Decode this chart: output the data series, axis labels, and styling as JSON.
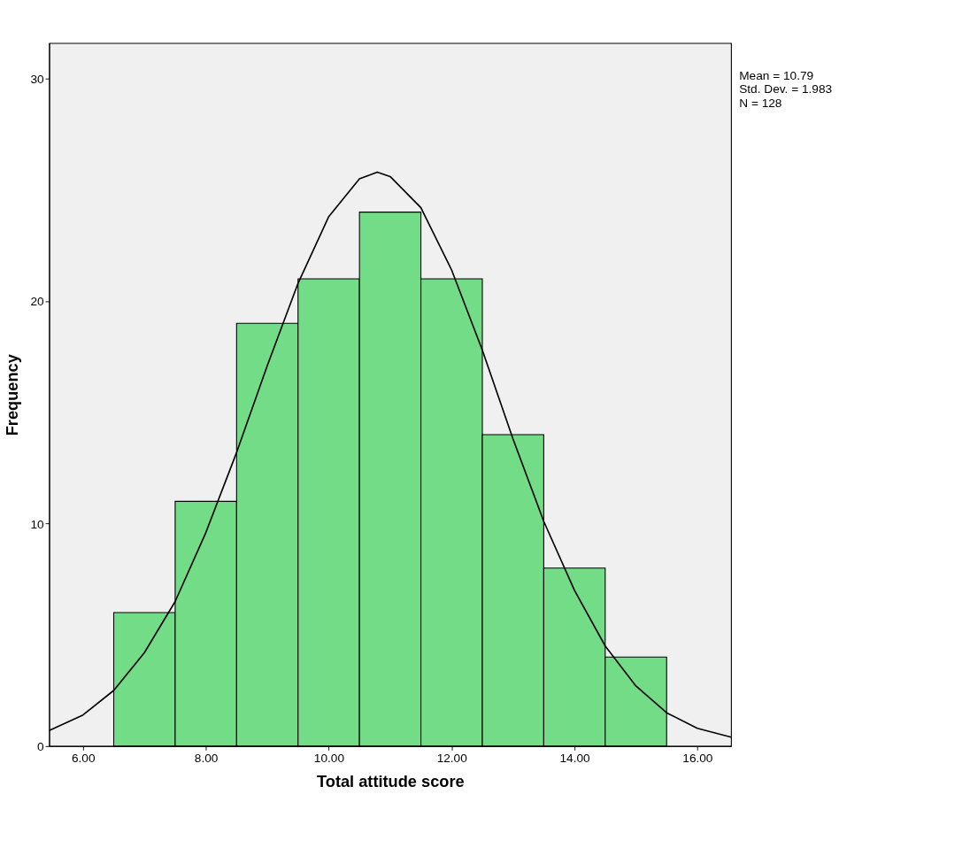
{
  "chart_data": {
    "type": "histogram",
    "xlabel": "Total attitude score",
    "ylabel": "Frequency",
    "bins": [
      6.5,
      7.5,
      8.5,
      9.5,
      10.5,
      11.5,
      12.5,
      13.5,
      14.5,
      15.5
    ],
    "values": [
      6,
      11,
      19,
      21,
      24,
      21,
      14,
      8,
      4
    ],
    "color": "#72dc86",
    "series": [
      {
        "type": "line",
        "color": "#000000",
        "x": [
          5.45,
          6.0,
          6.5,
          7.0,
          7.5,
          8.0,
          8.5,
          9.0,
          9.5,
          10.0,
          10.5,
          10.79,
          11.0,
          11.5,
          12.0,
          12.5,
          13.0,
          13.5,
          14.0,
          14.5,
          15.0,
          15.5,
          16.0,
          16.55
        ],
        "values": [
          0.7,
          1.4,
          2.5,
          4.2,
          6.5,
          9.6,
          13.2,
          17.1,
          20.8,
          23.8,
          25.5,
          25.8,
          25.6,
          24.2,
          21.4,
          17.8,
          13.8,
          10.1,
          7.0,
          4.5,
          2.7,
          1.5,
          0.8,
          0.4
        ]
      }
    ],
    "xlim": [
      5.45,
      16.55
    ],
    "xticks": [
      {
        "value": 6,
        "label": "6.00"
      },
      {
        "value": 8,
        "label": "8.00"
      },
      {
        "value": 10,
        "label": "10.00"
      },
      {
        "value": 12,
        "label": "12.00"
      },
      {
        "value": 14,
        "label": "14.00"
      },
      {
        "value": 16,
        "label": "16.00"
      }
    ],
    "ylim": [
      0,
      31.6
    ],
    "yticks": [
      0,
      10,
      20,
      30
    ],
    "grid": false,
    "annotations": [
      "Mean = 10.79",
      "Std. Dev. = 1.983",
      "N = 128"
    ]
  }
}
